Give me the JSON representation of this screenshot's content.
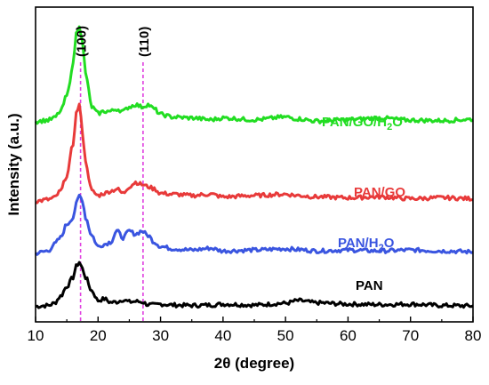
{
  "chart_data": {
    "type": "line",
    "xlabel": "2θ (degree)",
    "ylabel": "Intensity (a.u.)",
    "xlim": [
      10,
      80
    ],
    "xticks": [
      "10",
      "20",
      "30",
      "40",
      "50",
      "60",
      "70",
      "80"
    ],
    "yticks_shown": false,
    "reference_lines": [
      {
        "label": "(100)",
        "x": 17.2,
        "color": "#e040e0"
      },
      {
        "label": "(110)",
        "x": 27.2,
        "color": "#e040e0"
      }
    ],
    "series": [
      {
        "name": "PAN",
        "label_parts": [
          {
            "text": "PAN",
            "sub": false
          }
        ],
        "color": "#000000",
        "baseline": 0.0,
        "x": [
          10,
          12,
          13,
          14,
          15,
          16,
          16.5,
          17,
          17.5,
          18,
          19,
          20,
          21,
          22,
          23,
          24,
          25,
          26,
          27,
          28,
          29,
          30,
          32,
          35,
          38,
          40,
          45,
          50,
          52,
          55,
          60,
          65,
          70,
          75,
          80
        ],
        "y": [
          0.05,
          0.07,
          0.12,
          0.28,
          0.5,
          0.7,
          0.95,
          1.05,
          0.9,
          0.7,
          0.4,
          0.18,
          0.22,
          0.14,
          0.15,
          0.2,
          0.15,
          0.16,
          0.15,
          0.09,
          0.08,
          0.1,
          0.08,
          0.07,
          0.08,
          0.1,
          0.08,
          0.12,
          0.18,
          0.13,
          0.1,
          0.09,
          0.1,
          0.07,
          0.06
        ]
      },
      {
        "name": "PAN/H2O",
        "label_parts": [
          {
            "text": "PAN/H",
            "sub": false
          },
          {
            "text": "2",
            "sub": true
          },
          {
            "text": "O",
            "sub": false
          }
        ],
        "color": "#3a55e0",
        "baseline": 1.2,
        "x": [
          10,
          12,
          13,
          14,
          15,
          16,
          16.5,
          17,
          17.5,
          18,
          19,
          20,
          21,
          22,
          23,
          24,
          25,
          26,
          27,
          28,
          29,
          30,
          32,
          35,
          38,
          40,
          45,
          50,
          52,
          55,
          60,
          65,
          70,
          75,
          80
        ],
        "y": [
          0.05,
          0.1,
          0.25,
          0.4,
          0.7,
          0.85,
          1.15,
          1.35,
          1.25,
          0.85,
          0.45,
          0.2,
          0.25,
          0.3,
          0.55,
          0.4,
          0.55,
          0.48,
          0.55,
          0.45,
          0.3,
          0.2,
          0.15,
          0.12,
          0.16,
          0.1,
          0.12,
          0.15,
          0.13,
          0.1,
          0.12,
          0.1,
          0.12,
          0.1,
          0.08
        ]
      },
      {
        "name": "PAN/GO",
        "label_parts": [
          {
            "text": "PAN/GO",
            "sub": false
          }
        ],
        "color": "#e83a3a",
        "baseline": 2.4,
        "x": [
          10,
          12,
          13,
          14,
          15,
          16,
          16.5,
          17,
          17.5,
          18,
          19,
          20,
          21,
          22,
          23,
          24,
          25,
          26,
          27,
          28,
          29,
          30,
          32,
          35,
          38,
          40,
          45,
          50,
          52,
          55,
          60,
          65,
          70,
          75,
          80
        ],
        "y": [
          0.02,
          0.06,
          0.1,
          0.25,
          0.6,
          1.3,
          2.0,
          2.2,
          1.6,
          0.9,
          0.25,
          0.15,
          0.2,
          0.25,
          0.3,
          0.2,
          0.35,
          0.45,
          0.4,
          0.35,
          0.3,
          0.2,
          0.18,
          0.15,
          0.18,
          0.12,
          0.15,
          0.18,
          0.15,
          0.12,
          0.1,
          0.12,
          0.08,
          0.1,
          0.08
        ]
      },
      {
        "name": "PAN/GO/H2O",
        "label_parts": [
          {
            "text": "PAN/GO/H",
            "sub": false
          },
          {
            "text": "2",
            "sub": true
          },
          {
            "text": "O",
            "sub": false
          }
        ],
        "color": "#22dd22",
        "baseline": 4.2,
        "x": [
          10,
          12,
          13,
          14,
          15,
          16,
          16.5,
          17,
          17.5,
          18,
          19,
          20,
          21,
          22,
          23,
          24,
          25,
          26,
          27,
          28,
          29,
          30,
          32,
          35,
          38,
          40,
          45,
          50,
          52,
          55,
          60,
          65,
          70,
          75,
          80
        ],
        "y": [
          0.02,
          0.05,
          0.1,
          0.25,
          0.6,
          1.3,
          2.0,
          2.2,
          1.8,
          1.1,
          0.35,
          0.2,
          0.25,
          0.25,
          0.3,
          0.25,
          0.35,
          0.4,
          0.35,
          0.4,
          0.3,
          0.18,
          0.12,
          0.1,
          0.06,
          0.1,
          0.06,
          0.12,
          0.08,
          0.03,
          0.06,
          0.1,
          0.05,
          0.04,
          0.07
        ]
      }
    ]
  }
}
